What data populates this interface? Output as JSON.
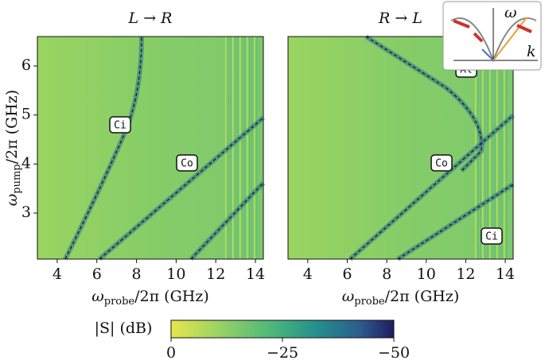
{
  "chart_data": [
    {
      "type": "heatmap",
      "title": "L → R",
      "x_label": {
        "symbol": "ω",
        "sub": "probe",
        "rest": "/2π (GHz)"
      },
      "y_label": {
        "symbol": "ω",
        "sub": "pump",
        "rest": "/2π (GHz)"
      },
      "xlim": [
        3,
        14.4
      ],
      "xticks": [
        4,
        6,
        8,
        10,
        12,
        14
      ],
      "ylim": [
        2.06,
        6.6
      ],
      "yticks": [
        3,
        4,
        5,
        6
      ],
      "annotations": [
        "Ci",
        "Co"
      ]
    },
    {
      "type": "heatmap",
      "title": "R → L",
      "x_label": {
        "symbol": "ω",
        "sub": "probe",
        "rest": "/2π (GHz)"
      },
      "xlim": [
        3,
        14.4
      ],
      "xticks": [
        4,
        6,
        8,
        10,
        12,
        14
      ],
      "ylim": [
        2.06,
        6.6
      ],
      "annotations": [
        "Al",
        "Co",
        "Ci"
      ]
    }
  ],
  "colorbar": {
    "label": "|S| (dB)",
    "lim": [
      0,
      -50
    ],
    "ticks": [
      0,
      {
        "value": -25,
        "label": "−25"
      },
      {
        "value": -50,
        "label": "−50"
      }
    ]
  },
  "inset": {
    "y_label": "ω",
    "x_label": "k"
  }
}
